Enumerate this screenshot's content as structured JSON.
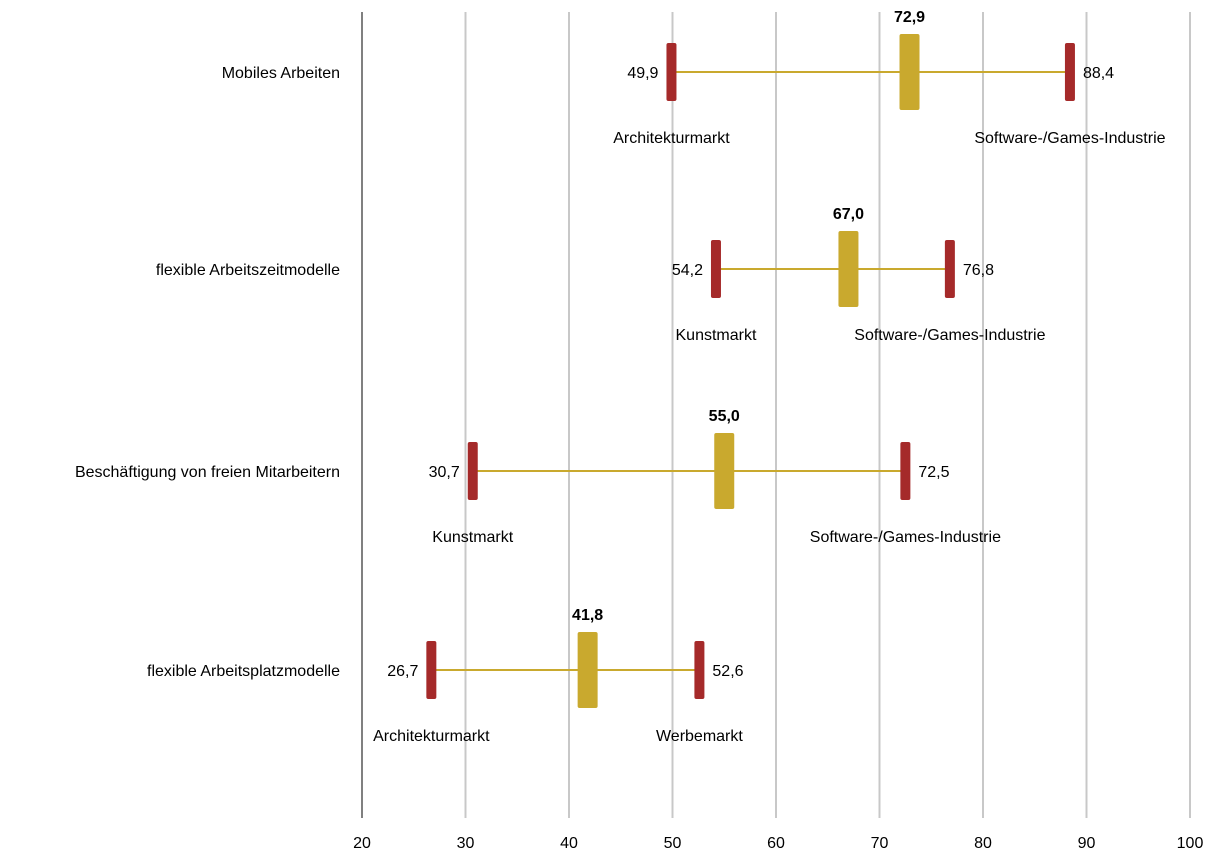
{
  "chart_data": {
    "type": "range",
    "xlim": [
      20,
      100
    ],
    "x_ticks": [
      "20",
      "30",
      "40",
      "50",
      "60",
      "70",
      "80",
      "90",
      "100"
    ],
    "grid": true,
    "colors": {
      "range_end": "#a52a2a",
      "mean": "#c9a92e",
      "line": "#c9a92e",
      "grid": "#c8c8c8",
      "axis": "#808080"
    },
    "rows": [
      {
        "category": "Mobiles Arbeiten",
        "min": 49.9,
        "mean": 72.9,
        "max": 88.4,
        "min_label": "49,9",
        "mean_label": "72,9",
        "max_label": "88,4",
        "min_market": "Architekturmarkt",
        "max_market": "Software-/Games-Industrie"
      },
      {
        "category": "flexible Arbeitszeitmodelle",
        "min": 54.2,
        "mean": 67.0,
        "max": 76.8,
        "min_label": "54,2",
        "mean_label": "67,0",
        "max_label": "76,8",
        "min_market": "Kunstmarkt",
        "max_market": "Software-/Games-Industrie"
      },
      {
        "category": "Beschäftigung von freien Mitarbeitern",
        "min": 30.7,
        "mean": 55.0,
        "max": 72.5,
        "min_label": "30,7",
        "mean_label": "55,0",
        "max_label": "72,5",
        "min_market": "Kunstmarkt",
        "max_market": "Software-/Games-Industrie"
      },
      {
        "category": "flexible Arbeitsplatzmodelle",
        "min": 26.7,
        "mean": 41.8,
        "max": 52.6,
        "min_label": "26,7",
        "mean_label": "41,8",
        "max_label": "52,6",
        "min_market": "Architekturmarkt",
        "max_market": "Werbemarkt"
      }
    ]
  }
}
